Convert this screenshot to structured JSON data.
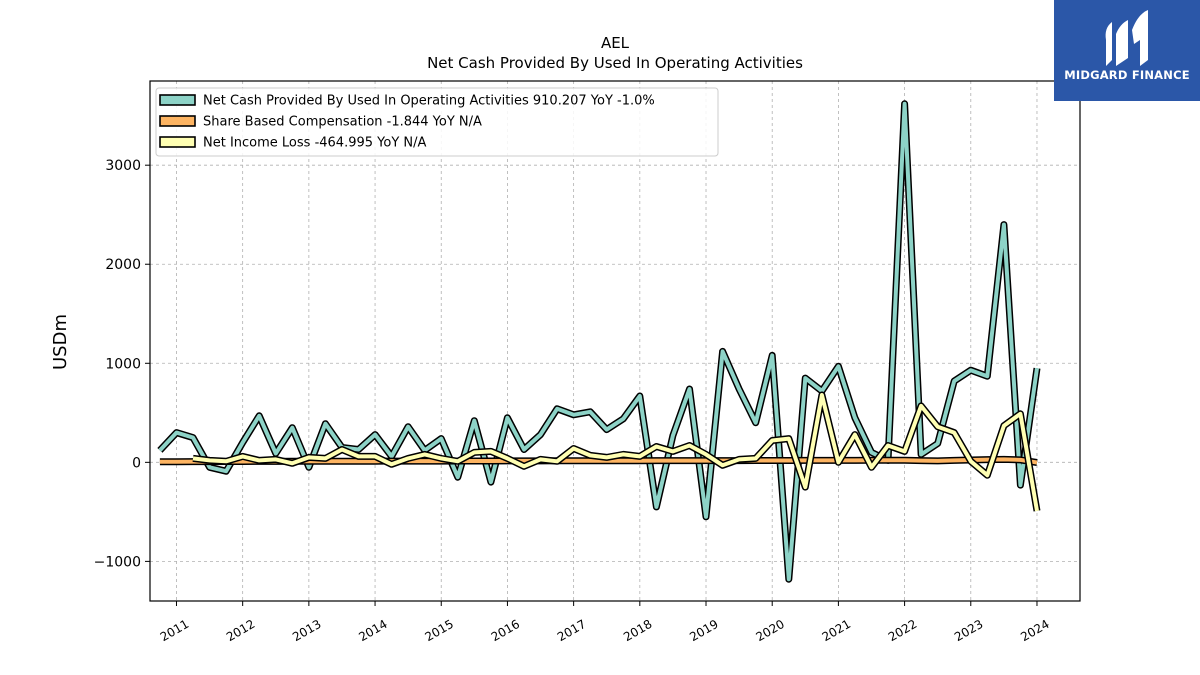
{
  "brand": {
    "name": "MIDGARD FINANCE",
    "bg_color": "#2b57a8"
  },
  "chart_data": {
    "type": "line",
    "title": "AEL",
    "subtitle": "Net Cash Provided By Used In Operating Activities",
    "ylabel": "USDm",
    "xlabel": "",
    "xlim": [
      2010.6,
      2024.65
    ],
    "ylim": [
      -1400,
      3850
    ],
    "yticks": [
      -1000,
      0,
      1000,
      2000,
      3000
    ],
    "ytick_labels": [
      "−1000",
      "0",
      "1000",
      "2000",
      "3000"
    ],
    "xticks": [
      2011,
      2012,
      2013,
      2014,
      2015,
      2016,
      2017,
      2018,
      2019,
      2020,
      2021,
      2022,
      2023,
      2024
    ],
    "xtick_labels": [
      "2011",
      "2012",
      "2013",
      "2014",
      "2015",
      "2016",
      "2017",
      "2018",
      "2019",
      "2020",
      "2021",
      "2022",
      "2023",
      "2024"
    ],
    "grid": true,
    "legend_position": "top-left",
    "series": [
      {
        "name": "Net Cash Provided By Used In Operating Activities",
        "legend": "Net Cash Provided By Used In Operating Activities  910.207 YoY -1.0%",
        "color": "#8dd3c7",
        "x": [
          2010.75,
          2011.0,
          2011.25,
          2011.5,
          2011.75,
          2012.0,
          2012.25,
          2012.5,
          2012.75,
          2013.0,
          2013.25,
          2013.5,
          2013.75,
          2014.0,
          2014.25,
          2014.5,
          2014.75,
          2015.0,
          2015.25,
          2015.5,
          2015.75,
          2016.0,
          2016.25,
          2016.5,
          2016.75,
          2017.0,
          2017.25,
          2017.5,
          2017.75,
          2018.0,
          2018.25,
          2018.5,
          2018.75,
          2019.0,
          2019.25,
          2019.5,
          2019.75,
          2020.0,
          2020.25,
          2020.5,
          2020.75,
          2021.0,
          2021.25,
          2021.5,
          2021.75,
          2022.0,
          2022.25,
          2022.5,
          2022.75,
          2023.0,
          2023.25,
          2023.5,
          2023.75,
          2024.0
        ],
        "values": [
          120,
          300,
          250,
          -50,
          -90,
          200,
          470,
          90,
          350,
          -50,
          390,
          150,
          130,
          280,
          60,
          360,
          120,
          240,
          -150,
          420,
          -200,
          450,
          130,
          280,
          540,
          480,
          510,
          330,
          440,
          670,
          -450,
          270,
          740,
          -550,
          1120,
          740,
          400,
          1080,
          -1180,
          850,
          720,
          970,
          450,
          100,
          20,
          3620,
          80,
          190,
          820,
          930,
          870,
          2400,
          -230,
          950
        ]
      },
      {
        "name": "Share Based Compensation",
        "legend": "Share Based Compensation  -1.844 YoY N/A",
        "color": "#fdb462",
        "x": [
          2010.75,
          2011.0,
          2011.25,
          2011.5,
          2011.75,
          2012.0,
          2012.25,
          2012.5,
          2012.75,
          2013.0,
          2013.25,
          2013.5,
          2013.75,
          2014.0,
          2014.25,
          2014.5,
          2014.75,
          2015.0,
          2015.25,
          2015.5,
          2015.75,
          2016.0,
          2016.25,
          2016.5,
          2016.75,
          2017.0,
          2017.25,
          2017.5,
          2017.75,
          2018.0,
          2018.25,
          2018.5,
          2018.75,
          2019.0,
          2019.25,
          2019.5,
          2019.75,
          2020.0,
          2020.25,
          2020.5,
          2020.75,
          2021.0,
          2021.25,
          2021.5,
          2021.75,
          2022.0,
          2022.25,
          2022.5,
          2022.75,
          2023.0,
          2023.25,
          2023.5,
          2023.75,
          2024.0
        ],
        "values": [
          5,
          6,
          7,
          7,
          8,
          8,
          9,
          9,
          10,
          10,
          10,
          11,
          11,
          11,
          12,
          12,
          12,
          12,
          13,
          13,
          13,
          14,
          14,
          14,
          15,
          15,
          15,
          16,
          16,
          16,
          17,
          17,
          17,
          18,
          18,
          18,
          19,
          19,
          19,
          20,
          20,
          20,
          20,
          21,
          21,
          21,
          18,
          14,
          20,
          24,
          28,
          30,
          25,
          -2
        ]
      },
      {
        "name": "Net Income Loss",
        "legend": "Net Income Loss  -464.995 YoY N/A",
        "color": "#ffffb3",
        "x": [
          2011.25,
          2011.5,
          2011.75,
          2012.0,
          2012.25,
          2012.5,
          2012.75,
          2013.0,
          2013.25,
          2013.5,
          2013.75,
          2014.0,
          2014.25,
          2014.5,
          2014.75,
          2015.0,
          2015.25,
          2015.5,
          2015.75,
          2016.0,
          2016.25,
          2016.5,
          2016.75,
          2017.0,
          2017.25,
          2017.5,
          2017.75,
          2018.0,
          2018.25,
          2018.5,
          2018.75,
          2019.0,
          2019.25,
          2019.5,
          2019.75,
          2020.0,
          2020.25,
          2020.5,
          2020.75,
          2021.0,
          2021.25,
          2021.5,
          2021.75,
          2022.0,
          2022.25,
          2022.5,
          2022.75,
          2023.0,
          2023.25,
          2023.5,
          2023.75,
          2024.0
        ],
        "values": [
          40,
          20,
          10,
          60,
          20,
          30,
          -10,
          50,
          40,
          130,
          60,
          60,
          -20,
          40,
          80,
          40,
          10,
          100,
          110,
          40,
          -40,
          30,
          10,
          140,
          70,
          50,
          80,
          60,
          160,
          110,
          170,
          80,
          -30,
          30,
          40,
          220,
          240,
          -250,
          680,
          0,
          280,
          -50,
          170,
          110,
          570,
          360,
          300,
          10,
          -130,
          370,
          490,
          -490
        ]
      }
    ]
  }
}
